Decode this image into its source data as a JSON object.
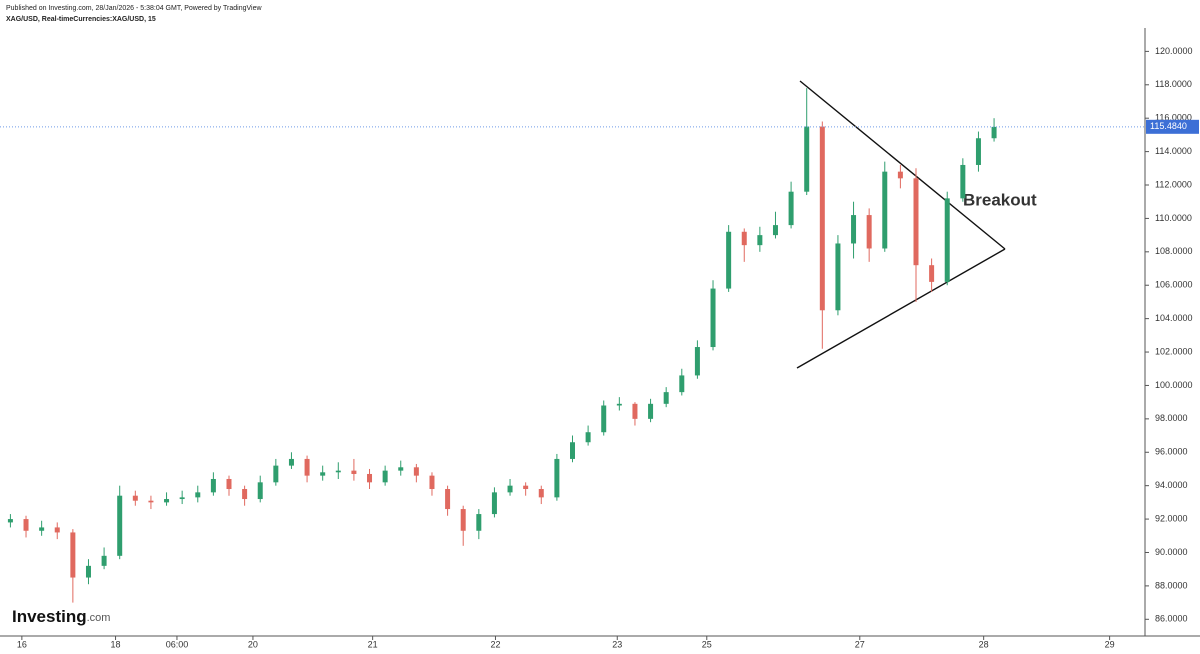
{
  "header": {
    "published": "Published on Investing.com, 28/Jan/2026 - 5:38:04 GMT, Powered by TradingView",
    "symbol": "XAG/USD, Real-timeCurrencies:XAG/USD, 15"
  },
  "logo": {
    "name": "Investing",
    "suffix": ".com"
  },
  "chart_data": {
    "type": "candlestick",
    "up_color": "#2f9e6e",
    "down_color": "#e0695f",
    "x": [
      1,
      2.5,
      4,
      5.5,
      7,
      8.5,
      10,
      11.5,
      13,
      14.5,
      16,
      17.5,
      19,
      20.5,
      22,
      23.5,
      25,
      26.5,
      28,
      29.5,
      31,
      32.5,
      34,
      35.5,
      37,
      38.5,
      40,
      41.5,
      43,
      44.5,
      46,
      47.5,
      49,
      50.5,
      52,
      53.5,
      55,
      56.5,
      58,
      59.5,
      61,
      62.5,
      64,
      65.5,
      67,
      68.5,
      70,
      71.5,
      73,
      74.5,
      76,
      77.5,
      79,
      80.5,
      82,
      83.5,
      85,
      86.5,
      88,
      89.5,
      91,
      92.5,
      94,
      95.5
    ],
    "open": [
      91.8,
      92.0,
      91.3,
      91.5,
      91.2,
      88.5,
      89.2,
      89.8,
      93.4,
      93.1,
      93.0,
      93.2,
      93.3,
      93.6,
      94.4,
      93.8,
      93.2,
      94.2,
      95.2,
      95.6,
      94.6,
      94.8,
      94.9,
      94.7,
      94.2,
      94.9,
      95.1,
      94.6,
      93.8,
      92.6,
      91.3,
      92.3,
      93.6,
      94.0,
      93.8,
      93.3,
      95.6,
      96.6,
      97.2,
      98.8,
      98.9,
      98.0,
      98.9,
      99.6,
      100.6,
      102.3,
      105.8,
      109.2,
      108.4,
      109.0,
      109.6,
      111.6,
      115.5,
      104.5,
      108.5,
      110.2,
      108.2,
      112.8,
      112.4,
      107.2,
      106.2,
      111.2,
      113.2,
      114.8
    ],
    "high": [
      92.3,
      92.2,
      91.9,
      91.8,
      91.4,
      89.6,
      90.3,
      94.0,
      93.7,
      93.4,
      93.6,
      93.7,
      94.0,
      94.8,
      94.6,
      94.0,
      94.6,
      95.6,
      96.0,
      95.8,
      95.2,
      95.4,
      95.6,
      95.0,
      95.2,
      95.5,
      95.3,
      94.8,
      94.0,
      92.8,
      92.6,
      93.9,
      94.4,
      94.2,
      94.0,
      95.9,
      97.0,
      97.6,
      99.1,
      99.3,
      99.0,
      99.2,
      99.9,
      101.0,
      102.7,
      106.3,
      109.6,
      109.4,
      109.5,
      110.4,
      112.2,
      117.8,
      115.8,
      109.0,
      111.0,
      110.6,
      113.4,
      113.2,
      113.0,
      107.6,
      111.6,
      113.6,
      115.2,
      116.0
    ],
    "low": [
      91.5,
      90.9,
      91.0,
      90.8,
      87.0,
      88.1,
      89.0,
      89.6,
      92.8,
      92.6,
      92.8,
      92.9,
      93.0,
      93.4,
      93.4,
      92.8,
      93.0,
      94.0,
      95.0,
      94.2,
      94.3,
      94.4,
      94.3,
      93.8,
      94.0,
      94.6,
      94.2,
      93.4,
      92.2,
      90.4,
      90.8,
      92.1,
      93.4,
      93.4,
      92.9,
      93.1,
      95.4,
      96.4,
      97.0,
      98.5,
      97.6,
      97.8,
      98.7,
      99.4,
      100.4,
      102.1,
      105.6,
      107.4,
      108.0,
      108.8,
      109.4,
      111.4,
      102.2,
      104.2,
      107.6,
      107.4,
      108.0,
      111.8,
      105.0,
      105.6,
      106.0,
      111.0,
      112.8,
      114.6
    ],
    "close": [
      92.0,
      91.3,
      91.5,
      91.2,
      88.5,
      89.2,
      89.8,
      93.4,
      93.1,
      93.0,
      93.2,
      93.3,
      93.6,
      94.4,
      93.8,
      93.2,
      94.2,
      95.2,
      95.6,
      94.6,
      94.8,
      94.9,
      94.7,
      94.2,
      94.9,
      95.1,
      94.6,
      93.8,
      92.6,
      91.3,
      92.3,
      93.6,
      94.0,
      93.8,
      93.3,
      95.6,
      96.6,
      97.2,
      98.8,
      98.9,
      98.0,
      98.9,
      99.6,
      100.6,
      102.3,
      105.8,
      109.2,
      108.4,
      109.0,
      109.6,
      111.6,
      115.5,
      104.5,
      108.5,
      110.2,
      108.2,
      112.8,
      112.4,
      107.2,
      106.2,
      111.2,
      113.2,
      114.8,
      115.48
    ],
    "xlim": [
      0,
      110
    ],
    "xticks": [
      {
        "value": 2.1,
        "label": "16"
      },
      {
        "value": 11.1,
        "label": "18"
      },
      {
        "value": 17,
        "label": "06:00"
      },
      {
        "value": 24.3,
        "label": "20"
      },
      {
        "value": 35.8,
        "label": "21"
      },
      {
        "value": 47.6,
        "label": "22"
      },
      {
        "value": 59.3,
        "label": "23"
      },
      {
        "value": 67.9,
        "label": "25"
      },
      {
        "value": 82.6,
        "label": "27"
      },
      {
        "value": 94.5,
        "label": "28"
      },
      {
        "value": 106.6,
        "label": "29"
      }
    ],
    "ylim": [
      85.0,
      121.4
    ],
    "yticks": [
      {
        "value": 86,
        "label": "86.0000"
      },
      {
        "value": 88,
        "label": "88.0000"
      },
      {
        "value": 90,
        "label": "90.0000"
      },
      {
        "value": 92,
        "label": "92.0000"
      },
      {
        "value": 94,
        "label": "94.0000"
      },
      {
        "value": 96,
        "label": "96.0000"
      },
      {
        "value": 98,
        "label": "98.0000"
      },
      {
        "value": 100,
        "label": "100.0000"
      },
      {
        "value": 102,
        "label": "102.0000"
      },
      {
        "value": 104,
        "label": "104.0000"
      },
      {
        "value": 106,
        "label": "106.0000"
      },
      {
        "value": 108,
        "label": "108.0000"
      },
      {
        "value": 110,
        "label": "110.0000"
      },
      {
        "value": 112,
        "label": "112.0000"
      },
      {
        "value": 114,
        "label": "114.0000"
      },
      {
        "value": 116,
        "label": "116.0000"
      },
      {
        "value": 118,
        "label": "118.0000"
      },
      {
        "value": 120,
        "label": "120.0000"
      }
    ],
    "last_price": {
      "value": 115.484,
      "label": "115.4840"
    },
    "annotation": "Breakout"
  }
}
